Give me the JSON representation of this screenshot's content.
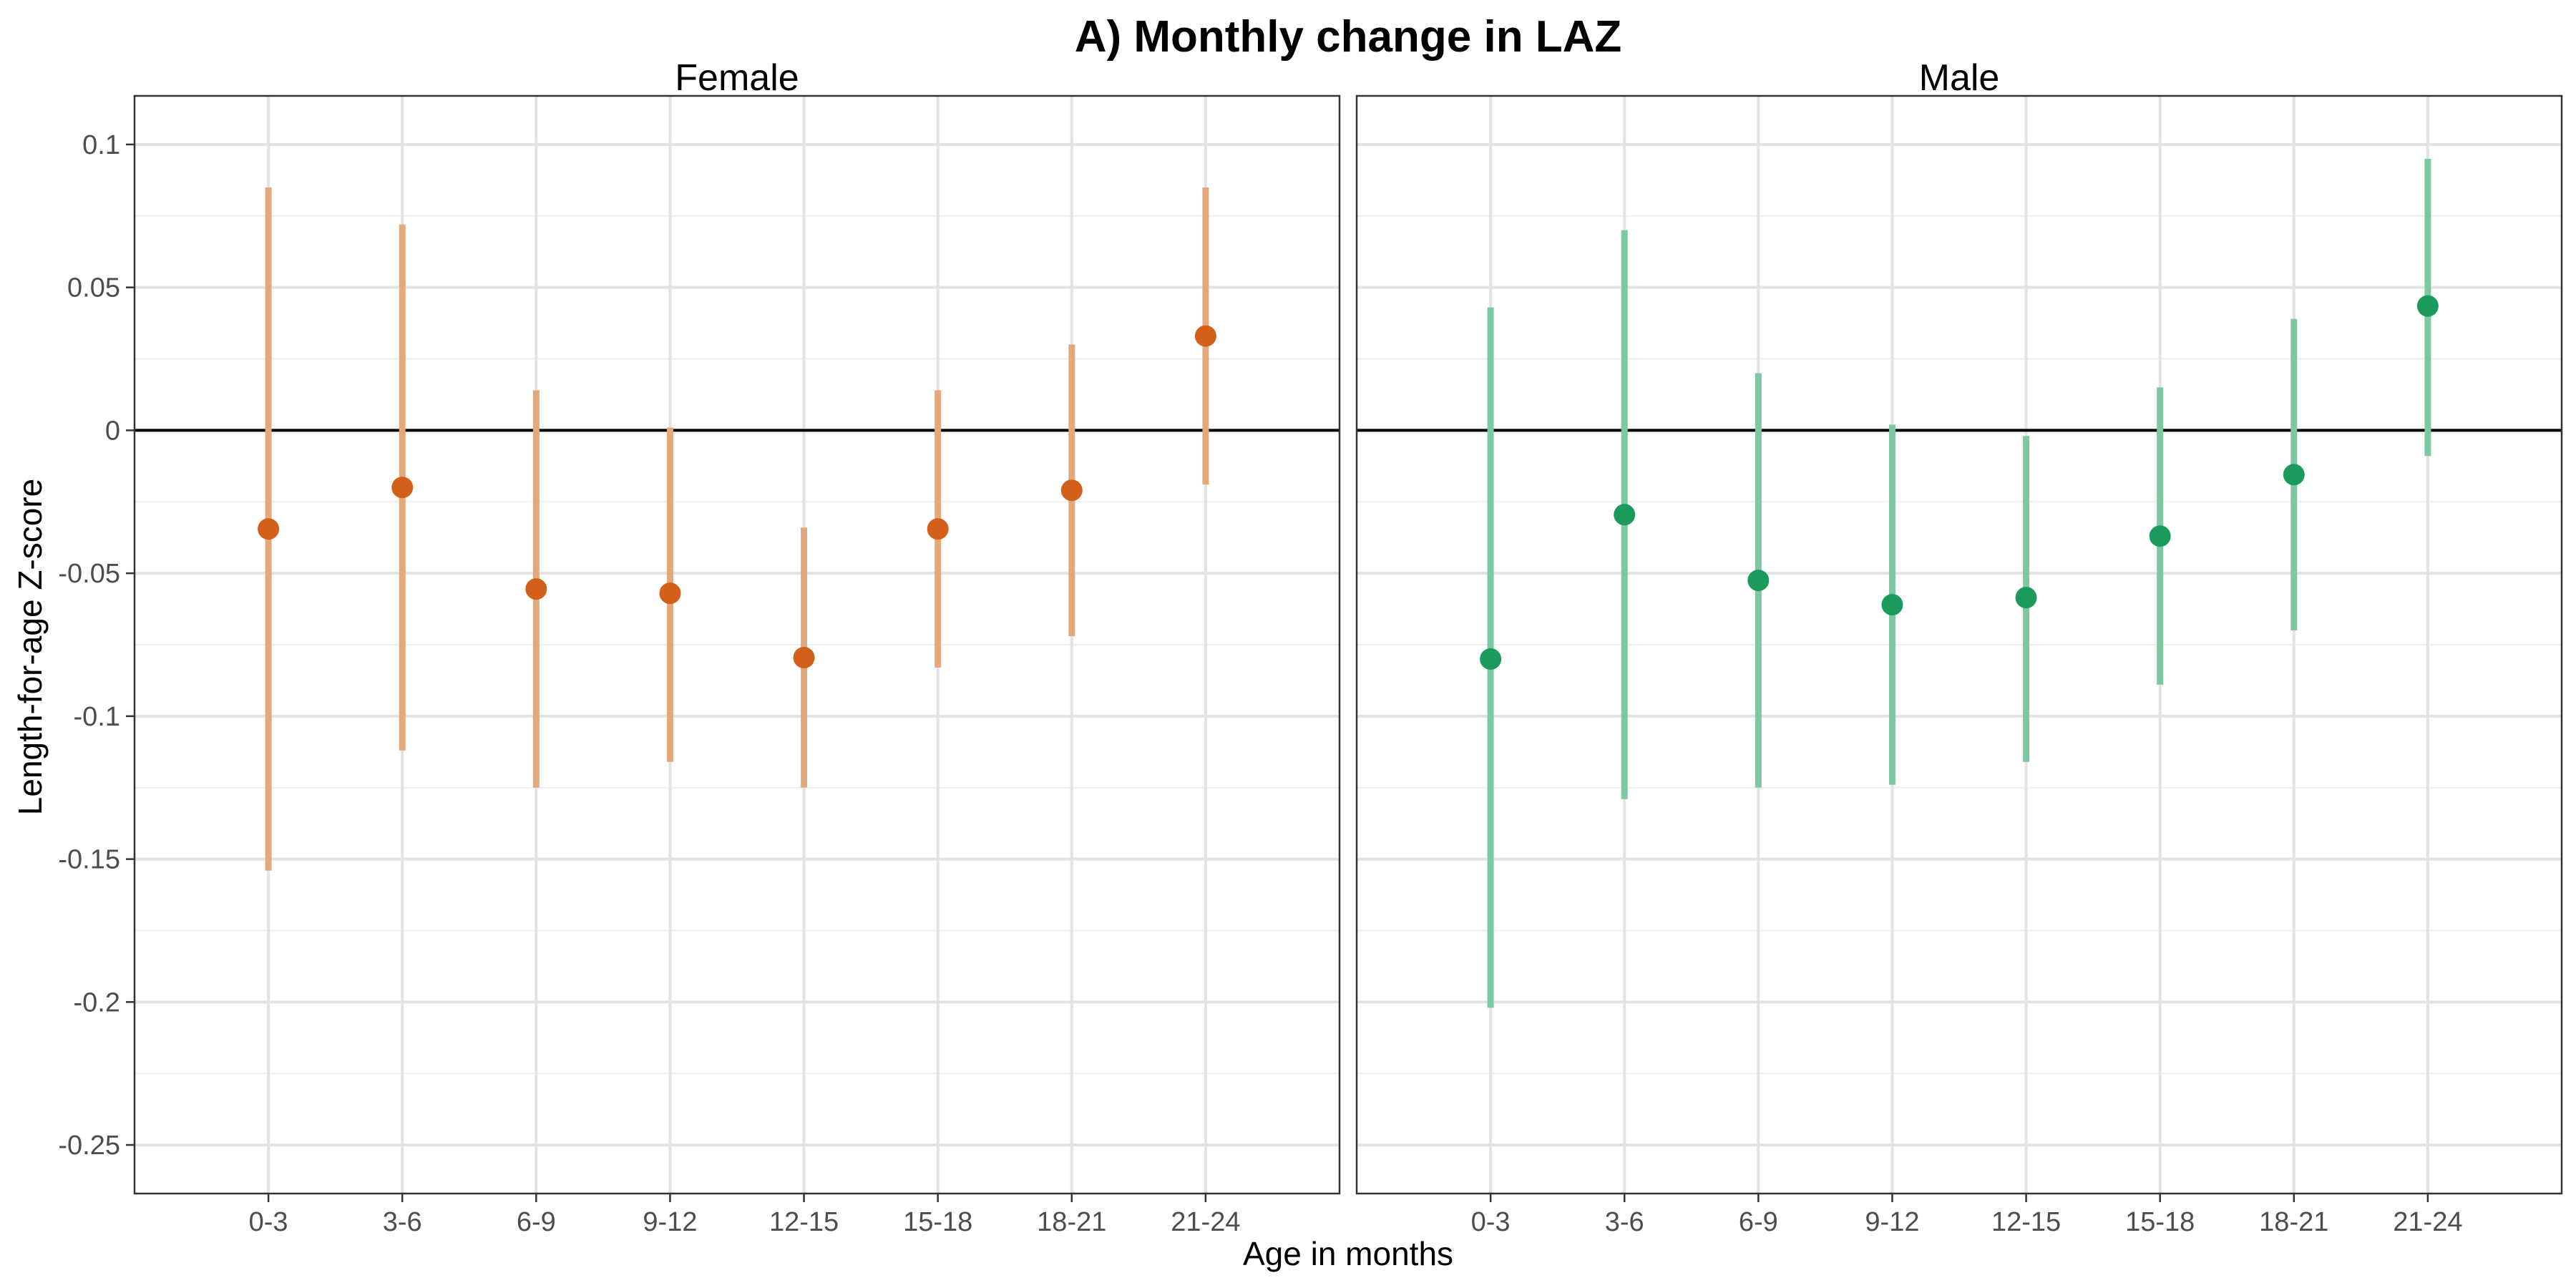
{
  "chart_data": {
    "type": "errorbar",
    "title": "A) Monthly change in LAZ",
    "xlabel": "Age in months",
    "ylabel": "Length-for-age Z-score",
    "categories": [
      "0-3",
      "3-6",
      "6-9",
      "9-12",
      "12-15",
      "15-18",
      "18-21",
      "21-24"
    ],
    "ylim": [
      -0.267,
      0.117
    ],
    "yticks": [
      0.1,
      0.05,
      0,
      -0.05,
      -0.1,
      -0.15,
      -0.2,
      -0.25
    ],
    "ytick_labels": [
      "0.1",
      "0.05",
      "0",
      "-0.05",
      "-0.1",
      "-0.15",
      "-0.2",
      "-0.25"
    ],
    "grid": true,
    "reference_line": 0,
    "panels": [
      {
        "name": "Female",
        "point_color": "#D2601A",
        "bar_color": "#E3A97B",
        "values": [
          -0.0345,
          -0.02,
          -0.0555,
          -0.057,
          -0.0795,
          -0.0345,
          -0.021,
          0.033
        ],
        "lower": [
          -0.154,
          -0.112,
          -0.125,
          -0.116,
          -0.125,
          -0.083,
          -0.072,
          -0.019
        ],
        "upper": [
          0.085,
          0.072,
          0.014,
          0.001,
          -0.034,
          0.014,
          0.03,
          0.085
        ]
      },
      {
        "name": "Male",
        "point_color": "#1A9A5B",
        "bar_color": "#7DC8A2",
        "values": [
          -0.08,
          -0.0295,
          -0.0525,
          -0.061,
          -0.0585,
          -0.037,
          -0.0155,
          0.0435
        ],
        "lower": [
          -0.202,
          -0.129,
          -0.125,
          -0.124,
          -0.116,
          -0.089,
          -0.07,
          -0.009
        ],
        "upper": [
          0.043,
          0.07,
          0.02,
          0.002,
          -0.002,
          0.015,
          0.039,
          0.095
        ]
      }
    ]
  }
}
